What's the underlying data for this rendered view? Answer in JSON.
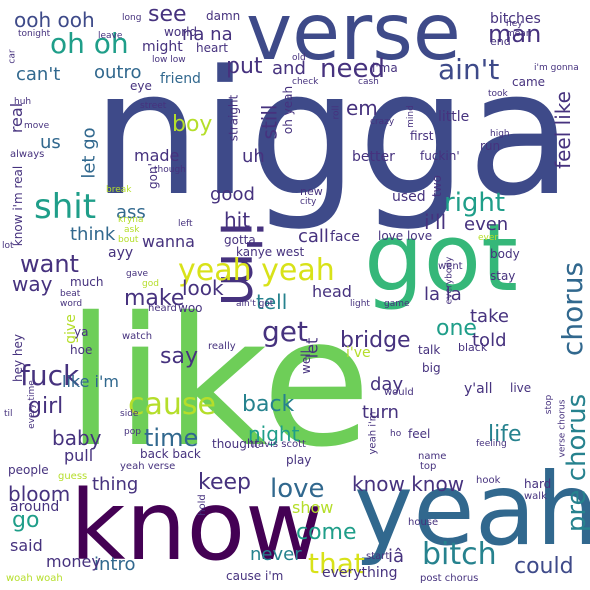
{
  "colors": {
    "background": "#ffffff",
    "navy": "#3e4a89",
    "indigo": "#46327e",
    "purple": "#440154",
    "blue": "#31688e",
    "teal": "#26828e",
    "green": "#1f9e89",
    "emerald": "#35b779",
    "lime": "#6ece58",
    "yellowgreen": "#b5de2b",
    "yellow": "#d8e219"
  },
  "words": {
    "w01": "nigga",
    "w02": "like",
    "w03": "know",
    "w04": "yeah",
    "w05": "got",
    "w06": "verse",
    "w07": "i'm",
    "w08": "yeah yeah",
    "w09": "bitch",
    "w10": "chorus",
    "w11": "pre chorus",
    "w12": "shit",
    "w13": "oh oh",
    "w14": "ain't",
    "w15": "need",
    "w16": "man",
    "w17": "get",
    "w18": "cause",
    "w19": "fuck",
    "w20": "that",
    "w21": "time",
    "w22": "love",
    "w23": "life",
    "w24": "right",
    "w25": "make",
    "w26": "want",
    "w27": "say",
    "w28": "one",
    "w29": "girl",
    "w30": "baby",
    "w31": "back",
    "w32": "night",
    "w33": "keep",
    "w34": "know know",
    "w35": "come",
    "w36": "go",
    "w37": "tell",
    "w38": "bridge",
    "w39": "look",
    "w40": "could",
    "w41": "bloom",
    "w42": "boy",
    "w43": "see",
    "w44": "ooh ooh",
    "w45": "put",
    "w46": "and",
    "w47": "can't",
    "w48": "outro",
    "w49": "na na",
    "w50": "feel like",
    "w51": "let go",
    "w52": "us",
    "w53": "made",
    "w54": "uh",
    "w55": "em",
    "w56": "still",
    "w57": "i'll",
    "w58": "even",
    "w59": "hit",
    "w60": "think",
    "w61": "ass",
    "w62": "wanna",
    "w63": "good",
    "w64": "call",
    "w65": "way",
    "w66": "la la",
    "w67": "take",
    "w68": "told",
    "w69": "head",
    "w70": "day",
    "w71": "turn",
    "w72": "like i'm",
    "w73": "thing",
    "w74": "pull",
    "w75": "show",
    "w76": "never",
    "w77": "intro",
    "w78": "money",
    "w79": "said",
    "w80": "around",
    "w81": "iâ",
    "w82": "everything",
    "w83": "bitches",
    "w84": "end",
    "w85": "heart",
    "w86": "might",
    "w87": "friend",
    "w88": "eye",
    "w89": "world",
    "w90": "damn",
    "w91": "real",
    "w92": "gotta",
    "w93": "kanye west",
    "w94": "face",
    "w95": "love love",
    "w96": "ayy",
    "w97": "give",
    "w98": "hey hey",
    "w99": "let",
    "w100": "i've",
    "w101": "talk",
    "w102": "y'all",
    "w103": "big",
    "w104": "black",
    "w105": "live",
    "w106": "feel",
    "w107": "hard",
    "w108": "walk",
    "w109": "hook",
    "w110": "name",
    "w111": "top",
    "w112": "house",
    "w113": "start",
    "w114": "post chorus",
    "w115": "cause i'm",
    "w116": "woah woah",
    "w117": "people",
    "w118": "guess",
    "w119": "yeah verse",
    "w120": "back back",
    "w121": "thought",
    "w122": "travis scott",
    "w123": "well",
    "w124": "play",
    "w125": "ya",
    "w126": "hoe",
    "w127": "watch",
    "w128": "heard",
    "w129": "woo",
    "w130": "really",
    "w131": "ain't got",
    "w132": "light",
    "w133": "game",
    "w134": "everybody",
    "w135": "body",
    "w136": "stay",
    "w137": "went",
    "w138": "much",
    "w139": "beat",
    "w140": "word",
    "w141": "gave",
    "w142": "god",
    "w143": "lot",
    "w144": "bout",
    "w145": "ask",
    "w146": "left",
    "w147": "city",
    "w148": "new",
    "w149": "used",
    "w150": "two",
    "w151": "better",
    "w152": "fuckin'",
    "w153": "first",
    "w154": "little",
    "w155": "run",
    "w156": "high",
    "w157": "took",
    "w158": "i'm gonna",
    "w159": "came",
    "w160": "hey",
    "w161": "mean",
    "w162": "cash",
    "w163": "check",
    "w164": "old",
    "w165": "low low",
    "w166": "long",
    "w167": "tonight",
    "w168": "leave",
    "w169": "car",
    "w170": "huh",
    "w171": "move",
    "w172": "always",
    "w173": "straight",
    "w174": "oh yeah",
    "w175": "gon'",
    "w176": "street",
    "w177": "roll",
    "w178": "crazy",
    "w179": "mind",
    "w180": "i'ma",
    "w181": "though",
    "w182": "break",
    "w183": "know i'm real",
    "w184": "every time",
    "w185": "side",
    "w186": "pop",
    "w187": "til",
    "w188": "ho",
    "w189": "feeling",
    "w190": "yeah i'm",
    "w191": "stop",
    "w192": "verse chorus",
    "w193": "would",
    "w194": "hold",
    "w195": "ever",
    "w196": "kryna"
  }
}
